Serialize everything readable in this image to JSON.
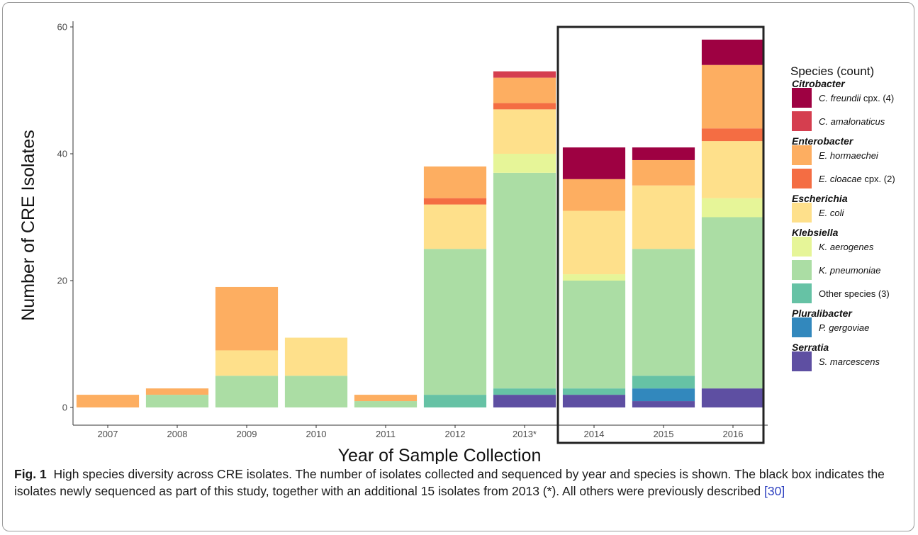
{
  "chart_data": {
    "type": "bar",
    "stacked": true,
    "title": "",
    "xlabel": "Year of Sample Collection",
    "ylabel": "Number of CRE Isolates",
    "ylim": [
      0,
      60
    ],
    "yticks": [
      0,
      20,
      40,
      60
    ],
    "categories": [
      "2007",
      "2008",
      "2009",
      "2010",
      "2011",
      "2012",
      "2013*",
      "2014",
      "2015",
      "2016"
    ],
    "highlight_box": {
      "from_category": "2014",
      "to_category": "2016",
      "color": "#222222"
    },
    "series": [
      {
        "name": "S. marcescens",
        "color": "#5E4FA2",
        "values": [
          0,
          0,
          0,
          0,
          0,
          0,
          2,
          2,
          1,
          3
        ]
      },
      {
        "name": "P. gergoviae",
        "color": "#3288BD",
        "values": [
          0,
          0,
          0,
          0,
          0,
          0,
          0,
          0,
          2,
          0
        ]
      },
      {
        "name": "Other species (3)",
        "color": "#66C2A5",
        "values": [
          0,
          0,
          0,
          0,
          0,
          2,
          1,
          1,
          2,
          0
        ]
      },
      {
        "name": "K. pneumoniae",
        "color": "#ABDDA4",
        "values": [
          0,
          2,
          5,
          5,
          1,
          23,
          34,
          17,
          20,
          27
        ]
      },
      {
        "name": "K. aerogenes",
        "color": "#E6F598",
        "values": [
          0,
          0,
          0,
          0,
          0,
          0,
          3,
          1,
          0,
          3
        ]
      },
      {
        "name": "E. coli",
        "color": "#FEE08B",
        "values": [
          0,
          0,
          4,
          6,
          0,
          7,
          7,
          10,
          10,
          9
        ]
      },
      {
        "name": "E. cloacae cpx. (2)",
        "color": "#F46D43",
        "values": [
          0,
          0,
          0,
          0,
          0,
          1,
          1,
          0,
          0,
          2
        ]
      },
      {
        "name": "E. hormaechei",
        "color": "#FDAE61",
        "values": [
          2,
          1,
          10,
          0,
          1,
          5,
          4,
          5,
          4,
          10
        ]
      },
      {
        "name": "C. amalonaticus",
        "color": "#D53E4F",
        "values": [
          0,
          0,
          0,
          0,
          0,
          0,
          1,
          0,
          0,
          0
        ]
      },
      {
        "name": "C. freundii cpx. (4)",
        "color": "#9E0142",
        "values": [
          0,
          0,
          0,
          0,
          0,
          0,
          0,
          5,
          2,
          4
        ]
      }
    ],
    "legend": {
      "title": "Species (count)",
      "placement": "right",
      "groups": [
        {
          "genus": "Citrobacter",
          "items": [
            {
              "species": "C. freundii",
              "suffix": " cpx. (4)",
              "color": "#9E0142"
            },
            {
              "species": "C. amalonaticus",
              "suffix": "",
              "color": "#D53E4F"
            }
          ]
        },
        {
          "genus": "Enterobacter",
          "items": [
            {
              "species": "E. hormaechei",
              "suffix": "",
              "color": "#FDAE61"
            },
            {
              "species": "E. cloacae",
              "suffix": " cpx. (2)",
              "color": "#F46D43"
            }
          ]
        },
        {
          "genus": "Escherichia",
          "items": [
            {
              "species": "E. coli",
              "suffix": "",
              "color": "#FEE08B"
            }
          ]
        },
        {
          "genus": "Klebsiella",
          "items": [
            {
              "species": "K. aerogenes",
              "suffix": "",
              "color": "#E6F598"
            },
            {
              "species": "K. pneumoniae",
              "suffix": "",
              "color": "#ABDDA4"
            },
            {
              "species": "",
              "suffix": "Other species (3)",
              "color": "#66C2A5"
            }
          ]
        },
        {
          "genus": "Pluralibacter",
          "items": [
            {
              "species": "P. gergoviae",
              "suffix": "",
              "color": "#3288BD"
            }
          ]
        },
        {
          "genus": "Serratia",
          "items": [
            {
              "species": "S. marcescens",
              "suffix": "",
              "color": "#5E4FA2"
            }
          ]
        }
      ]
    }
  },
  "caption": {
    "label": "Fig. 1",
    "text": "High species diversity across CRE isolates. The number of isolates collected and sequenced by year and species is shown. The black box indicates the isolates newly sequenced as part of this study, together with an additional 15 isolates from 2013 (*). All others were previously described ",
    "ref": "[30]"
  }
}
